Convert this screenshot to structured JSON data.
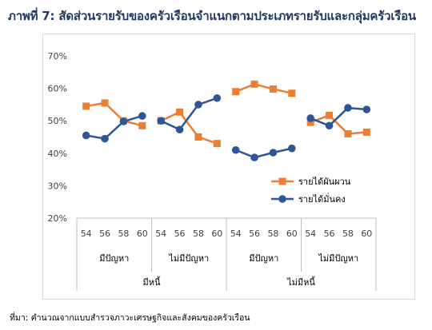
{
  "chart_data": {
    "type": "line",
    "title": "ภาพที่ 7: สัดส่วนรายรับของครัวเรือนจำแนกตามประเภทรายรับและกลุ่มครัวเรือน",
    "source": "ที่มา: คำนวณจากแบบสำรวจภาวะเศรษฐกิจและสังคมของครัวเรือน",
    "y_ticks": [
      "20%",
      "30%",
      "40%",
      "50%",
      "60%",
      "70%"
    ],
    "ylim": [
      20,
      70
    ],
    "grid": false,
    "legend_position": "lower-right",
    "groups": [
      {
        "label": "มีหนี้",
        "subgroups": [
          {
            "label": "มีปัญหา",
            "x": [
              "54",
              "56",
              "58",
              "60"
            ]
          },
          {
            "label": "ไม่มีปัญหา",
            "x": [
              "54",
              "56",
              "58",
              "60"
            ]
          }
        ]
      },
      {
        "label": "ไม่มีหนี้",
        "subgroups": [
          {
            "label": "มีปัญหา",
            "x": [
              "54",
              "56",
              "58",
              "60"
            ]
          },
          {
            "label": "ไม่มีปัญหา",
            "x": [
              "54",
              "56",
              "58",
              "60"
            ]
          }
        ]
      }
    ],
    "series": [
      {
        "name": "รายได้ผันผวน",
        "color": "#ed7d31",
        "marker": "square",
        "segments": [
          [
            54.5,
            55.5,
            50.0,
            48.5
          ],
          [
            50.0,
            52.7,
            45.0,
            43.0
          ],
          [
            59.0,
            61.3,
            59.8,
            58.5
          ],
          [
            49.5,
            51.7,
            46.0,
            46.5
          ]
        ]
      },
      {
        "name": "รายได้มั่นคง",
        "color": "#2f5597",
        "marker": "circle",
        "segments": [
          [
            45.5,
            44.5,
            49.8,
            51.5
          ],
          [
            50.0,
            47.3,
            55.0,
            57.0
          ],
          [
            41.0,
            38.7,
            40.2,
            41.5
          ],
          [
            50.8,
            48.5,
            54.0,
            53.5
          ]
        ]
      }
    ]
  }
}
